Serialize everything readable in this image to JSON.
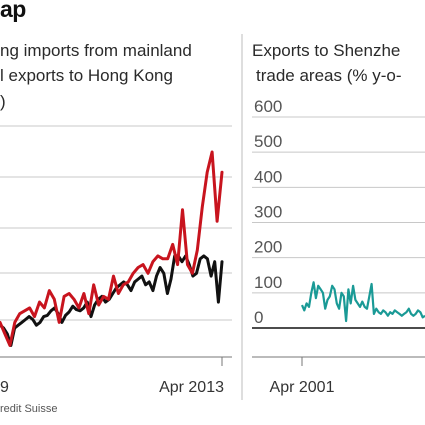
{
  "header": {
    "title": "ap",
    "left_subtitle_line1": "ng imports from mainland",
    "left_subtitle_line2": "l exports to Hong Kong",
    "left_subtitle_line3": ")",
    "right_subtitle_line1": "Exports to Shenzhe",
    "right_subtitle_line2": "trade areas (% y-o-"
  },
  "source": "redit Suisse",
  "colors": {
    "red_series": "#c8141e",
    "black_series": "#111111",
    "teal_series": "#1a9a96",
    "gridline": "#c8c8c8",
    "axis_label": "#555555"
  },
  "chart_data": [
    {
      "type": "line",
      "x_tick_labels": [
        "9",
        "Apr 2013"
      ],
      "series": [
        {
          "color": "red",
          "values": [
            60,
            40,
            20,
            60,
            75,
            80,
            85,
            70,
            95,
            85,
            115,
            100,
            60,
            105,
            110,
            100,
            85,
            110,
            75,
            125,
            90,
            105,
            100,
            140,
            110,
            125,
            130,
            145,
            155,
            160,
            145,
            165,
            175,
            170,
            170,
            195,
            160,
            255,
            160,
            145,
            185,
            260,
            320,
            355,
            235,
            320
          ]
        },
        {
          "color": "black",
          "values": [
            55,
            50,
            40,
            20,
            50,
            55,
            60,
            65,
            70,
            65,
            55,
            60,
            70,
            72,
            80,
            85,
            75,
            60,
            72,
            78,
            88,
            82,
            80,
            85,
            95,
            70,
            90,
            100,
            105,
            95,
            100,
            110,
            120,
            125,
            130,
            125,
            115,
            130,
            135,
            140,
            125,
            130,
            115,
            140,
            155,
            145,
            110,
            135,
            175,
            175,
            165,
            175,
            160,
            140,
            145,
            170,
            175,
            170,
            140,
            165,
            95,
            165
          ]
        }
      ]
    },
    {
      "type": "line",
      "ylim": [
        0,
        600
      ],
      "y_ticks": [
        "0",
        "100",
        "200",
        "300",
        "400",
        "500",
        "600"
      ],
      "x_tick_labels": [
        "Apr 2001"
      ],
      "series": [
        {
          "color": "teal",
          "values": [
            65,
            50,
            70,
            60,
            100,
            130,
            85,
            120,
            110,
            100,
            55,
            80,
            90,
            120,
            110,
            70,
            55,
            100,
            90,
            20,
            110,
            70,
            120,
            80,
            70,
            60,
            75,
            60,
            55,
            90,
            125,
            40,
            55,
            45,
            40,
            50,
            45,
            35,
            45,
            40,
            50,
            45,
            40,
            35,
            40,
            45,
            55,
            40,
            35,
            40,
            50,
            45,
            30,
            35
          ]
        }
      ]
    }
  ]
}
